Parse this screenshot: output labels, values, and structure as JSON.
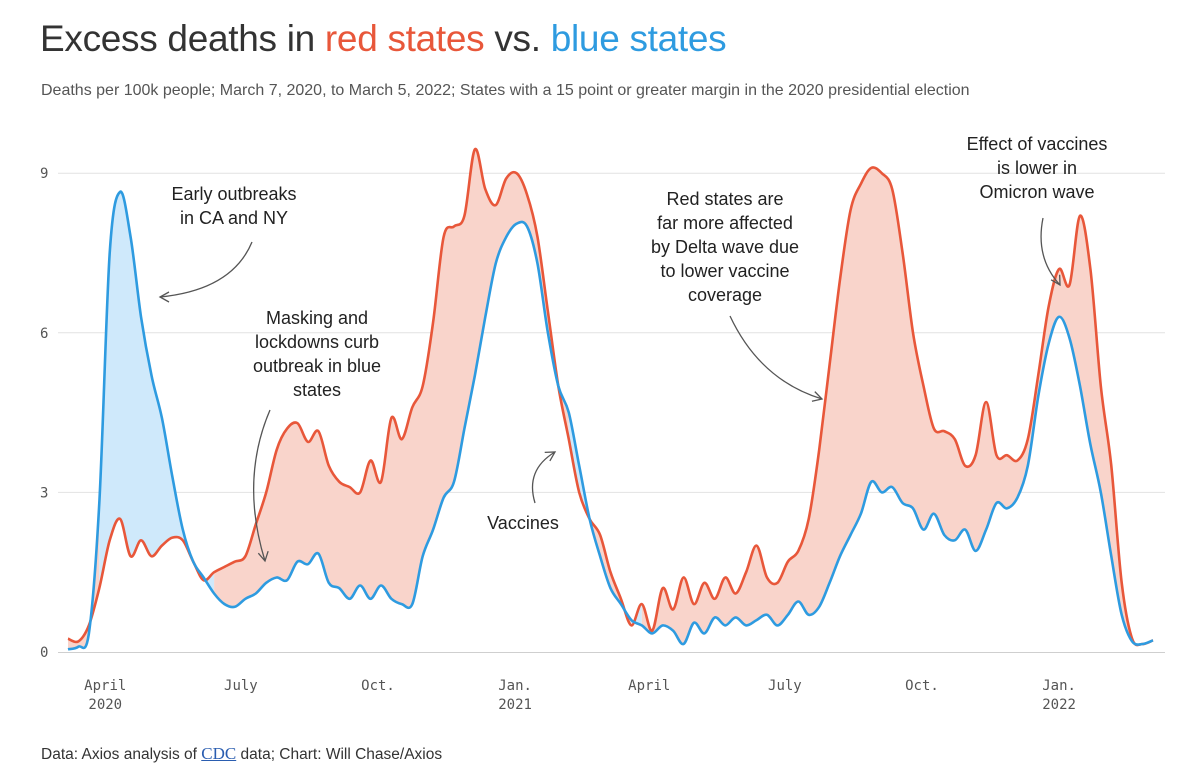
{
  "title": {
    "prefix": "Excess deaths in ",
    "red": "red states",
    "middle": " vs. ",
    "blue": "blue states"
  },
  "subtitle": "Deaths per 100k people; March 7, 2020, to March 5, 2022; States with a 15 point or greater margin in the 2020 presidential election",
  "footer": {
    "prefix": "Data: Axios analysis of ",
    "link": "CDC",
    "suffix": " data; Chart: Will Chase/Axios"
  },
  "colors": {
    "red": "#e8573a",
    "blue": "#2e9be0",
    "red_fill": "#f9d4cb",
    "blue_fill": "#cfe9fb",
    "grid": "#e2e2e2",
    "text": "#333333"
  },
  "chart_data": {
    "type": "area",
    "title": "Excess deaths in red states vs. blue states",
    "ylabel": "",
    "ylim": [
      0,
      9.8
    ],
    "yticks": [
      0,
      3,
      6,
      9
    ],
    "xlim": [
      "2020-03-07",
      "2022-03-05"
    ],
    "xticks": [
      {
        "date": "2020-04-01",
        "label": "April",
        "year": "2020"
      },
      {
        "date": "2020-07-01",
        "label": "July",
        "year": ""
      },
      {
        "date": "2020-10-01",
        "label": "Oct.",
        "year": ""
      },
      {
        "date": "2021-01-01",
        "label": "Jan.",
        "year": "2021"
      },
      {
        "date": "2021-04-01",
        "label": "April",
        "year": ""
      },
      {
        "date": "2021-07-01",
        "label": "July",
        "year": ""
      },
      {
        "date": "2021-10-01",
        "label": "Oct.",
        "year": ""
      },
      {
        "date": "2022-01-01",
        "label": "Jan.",
        "year": "2022"
      }
    ],
    "series": [
      {
        "name": "Red states",
        "points": [
          [
            "2020-03-07",
            0.25
          ],
          [
            "2020-03-14",
            0.2
          ],
          [
            "2020-03-21",
            0.5
          ],
          [
            "2020-03-28",
            1.2
          ],
          [
            "2020-04-04",
            2.1
          ],
          [
            "2020-04-11",
            2.5
          ],
          [
            "2020-04-18",
            1.8
          ],
          [
            "2020-04-25",
            2.1
          ],
          [
            "2020-05-02",
            1.8
          ],
          [
            "2020-05-09",
            2.0
          ],
          [
            "2020-05-16",
            2.15
          ],
          [
            "2020-05-23",
            2.1
          ],
          [
            "2020-05-30",
            1.7
          ],
          [
            "2020-06-06",
            1.35
          ],
          [
            "2020-06-13",
            1.5
          ],
          [
            "2020-06-20",
            1.6
          ],
          [
            "2020-06-27",
            1.7
          ],
          [
            "2020-07-04",
            1.8
          ],
          [
            "2020-07-11",
            2.4
          ],
          [
            "2020-07-18",
            3.0
          ],
          [
            "2020-07-25",
            3.8
          ],
          [
            "2020-08-01",
            4.2
          ],
          [
            "2020-08-08",
            4.3
          ],
          [
            "2020-08-15",
            3.95
          ],
          [
            "2020-08-22",
            4.15
          ],
          [
            "2020-08-29",
            3.5
          ],
          [
            "2020-09-05",
            3.2
          ],
          [
            "2020-09-12",
            3.1
          ],
          [
            "2020-09-19",
            3.0
          ],
          [
            "2020-09-26",
            3.6
          ],
          [
            "2020-10-03",
            3.2
          ],
          [
            "2020-10-10",
            4.4
          ],
          [
            "2020-10-17",
            4.0
          ],
          [
            "2020-10-24",
            4.6
          ],
          [
            "2020-10-31",
            5.0
          ],
          [
            "2020-11-07",
            6.2
          ],
          [
            "2020-11-14",
            7.8
          ],
          [
            "2020-11-21",
            8.0
          ],
          [
            "2020-11-28",
            8.2
          ],
          [
            "2020-12-05",
            9.45
          ],
          [
            "2020-12-12",
            8.7
          ],
          [
            "2020-12-19",
            8.4
          ],
          [
            "2020-12-26",
            8.9
          ],
          [
            "2021-01-02",
            9.0
          ],
          [
            "2021-01-09",
            8.6
          ],
          [
            "2021-01-16",
            7.8
          ],
          [
            "2021-01-23",
            6.4
          ],
          [
            "2021-01-30",
            5.0
          ],
          [
            "2021-02-06",
            4.0
          ],
          [
            "2021-02-13",
            3.0
          ],
          [
            "2021-02-20",
            2.5
          ],
          [
            "2021-02-27",
            2.2
          ],
          [
            "2021-03-06",
            1.5
          ],
          [
            "2021-03-13",
            1.0
          ],
          [
            "2021-03-20",
            0.5
          ],
          [
            "2021-03-27",
            0.9
          ],
          [
            "2021-04-03",
            0.4
          ],
          [
            "2021-04-10",
            1.2
          ],
          [
            "2021-04-17",
            0.8
          ],
          [
            "2021-04-24",
            1.4
          ],
          [
            "2021-05-01",
            0.9
          ],
          [
            "2021-05-08",
            1.3
          ],
          [
            "2021-05-15",
            1.0
          ],
          [
            "2021-05-22",
            1.4
          ],
          [
            "2021-05-29",
            1.1
          ],
          [
            "2021-06-05",
            1.5
          ],
          [
            "2021-06-12",
            2.0
          ],
          [
            "2021-06-19",
            1.4
          ],
          [
            "2021-06-26",
            1.3
          ],
          [
            "2021-07-03",
            1.7
          ],
          [
            "2021-07-10",
            1.9
          ],
          [
            "2021-07-17",
            2.5
          ],
          [
            "2021-07-24",
            3.8
          ],
          [
            "2021-07-31",
            5.4
          ],
          [
            "2021-08-07",
            7.0
          ],
          [
            "2021-08-14",
            8.3
          ],
          [
            "2021-08-21",
            8.8
          ],
          [
            "2021-08-28",
            9.1
          ],
          [
            "2021-09-04",
            9.0
          ],
          [
            "2021-09-11",
            8.7
          ],
          [
            "2021-09-18",
            7.5
          ],
          [
            "2021-09-25",
            6.0
          ],
          [
            "2021-10-02",
            5.0
          ],
          [
            "2021-10-09",
            4.2
          ],
          [
            "2021-10-16",
            4.15
          ],
          [
            "2021-10-23",
            4.0
          ],
          [
            "2021-10-30",
            3.5
          ],
          [
            "2021-11-06",
            3.7
          ],
          [
            "2021-11-13",
            4.7
          ],
          [
            "2021-11-20",
            3.7
          ],
          [
            "2021-11-27",
            3.7
          ],
          [
            "2021-12-04",
            3.6
          ],
          [
            "2021-12-11",
            4.0
          ],
          [
            "2021-12-18",
            5.2
          ],
          [
            "2021-12-25",
            6.5
          ],
          [
            "2022-01-01",
            7.2
          ],
          [
            "2022-01-08",
            6.9
          ],
          [
            "2022-01-15",
            8.2
          ],
          [
            "2022-01-22",
            7.2
          ],
          [
            "2022-01-29",
            5.0
          ],
          [
            "2022-02-05",
            3.5
          ],
          [
            "2022-02-12",
            1.3
          ],
          [
            "2022-02-19",
            0.25
          ],
          [
            "2022-02-26",
            0.15
          ],
          [
            "2022-03-05",
            0.22
          ]
        ]
      },
      {
        "name": "Blue states",
        "points": [
          [
            "2020-03-07",
            0.05
          ],
          [
            "2020-03-14",
            0.1
          ],
          [
            "2020-03-21",
            0.35
          ],
          [
            "2020-03-28",
            2.8
          ],
          [
            "2020-04-04",
            7.5
          ],
          [
            "2020-04-11",
            8.65
          ],
          [
            "2020-04-18",
            7.8
          ],
          [
            "2020-04-25",
            6.3
          ],
          [
            "2020-05-02",
            5.2
          ],
          [
            "2020-05-09",
            4.4
          ],
          [
            "2020-05-16",
            3.3
          ],
          [
            "2020-05-23",
            2.3
          ],
          [
            "2020-05-30",
            1.7
          ],
          [
            "2020-06-06",
            1.4
          ],
          [
            "2020-06-13",
            1.1
          ],
          [
            "2020-06-20",
            0.9
          ],
          [
            "2020-06-27",
            0.85
          ],
          [
            "2020-07-04",
            1.0
          ],
          [
            "2020-07-11",
            1.1
          ],
          [
            "2020-07-18",
            1.3
          ],
          [
            "2020-07-25",
            1.4
          ],
          [
            "2020-08-01",
            1.35
          ],
          [
            "2020-08-08",
            1.7
          ],
          [
            "2020-08-15",
            1.65
          ],
          [
            "2020-08-22",
            1.85
          ],
          [
            "2020-08-29",
            1.3
          ],
          [
            "2020-09-05",
            1.2
          ],
          [
            "2020-09-12",
            1.0
          ],
          [
            "2020-09-19",
            1.25
          ],
          [
            "2020-09-26",
            1.0
          ],
          [
            "2020-10-03",
            1.25
          ],
          [
            "2020-10-10",
            1.0
          ],
          [
            "2020-10-17",
            0.9
          ],
          [
            "2020-10-24",
            0.9
          ],
          [
            "2020-10-31",
            1.8
          ],
          [
            "2020-11-07",
            2.3
          ],
          [
            "2020-11-14",
            2.9
          ],
          [
            "2020-11-21",
            3.2
          ],
          [
            "2020-11-28",
            4.2
          ],
          [
            "2020-12-05",
            5.2
          ],
          [
            "2020-12-12",
            6.3
          ],
          [
            "2020-12-19",
            7.3
          ],
          [
            "2020-12-26",
            7.8
          ],
          [
            "2021-01-02",
            8.05
          ],
          [
            "2021-01-09",
            8.0
          ],
          [
            "2021-01-16",
            7.3
          ],
          [
            "2021-01-23",
            6.0
          ],
          [
            "2021-01-30",
            5.0
          ],
          [
            "2021-02-06",
            4.5
          ],
          [
            "2021-02-13",
            3.5
          ],
          [
            "2021-02-20",
            2.5
          ],
          [
            "2021-02-27",
            1.8
          ],
          [
            "2021-03-06",
            1.2
          ],
          [
            "2021-03-13",
            0.9
          ],
          [
            "2021-03-20",
            0.6
          ],
          [
            "2021-03-27",
            0.5
          ],
          [
            "2021-04-03",
            0.35
          ],
          [
            "2021-04-10",
            0.5
          ],
          [
            "2021-04-17",
            0.4
          ],
          [
            "2021-04-24",
            0.15
          ],
          [
            "2021-05-01",
            0.55
          ],
          [
            "2021-05-08",
            0.35
          ],
          [
            "2021-05-15",
            0.65
          ],
          [
            "2021-05-22",
            0.5
          ],
          [
            "2021-05-29",
            0.65
          ],
          [
            "2021-06-05",
            0.5
          ],
          [
            "2021-06-12",
            0.6
          ],
          [
            "2021-06-19",
            0.7
          ],
          [
            "2021-06-26",
            0.5
          ],
          [
            "2021-07-03",
            0.7
          ],
          [
            "2021-07-10",
            0.95
          ],
          [
            "2021-07-17",
            0.7
          ],
          [
            "2021-07-24",
            0.85
          ],
          [
            "2021-07-31",
            1.3
          ],
          [
            "2021-08-07",
            1.8
          ],
          [
            "2021-08-14",
            2.2
          ],
          [
            "2021-08-21",
            2.6
          ],
          [
            "2021-08-28",
            3.2
          ],
          [
            "2021-09-04",
            3.0
          ],
          [
            "2021-09-11",
            3.1
          ],
          [
            "2021-09-18",
            2.8
          ],
          [
            "2021-09-25",
            2.7
          ],
          [
            "2021-10-02",
            2.3
          ],
          [
            "2021-10-09",
            2.6
          ],
          [
            "2021-10-16",
            2.2
          ],
          [
            "2021-10-23",
            2.1
          ],
          [
            "2021-10-30",
            2.3
          ],
          [
            "2021-11-06",
            1.9
          ],
          [
            "2021-11-13",
            2.3
          ],
          [
            "2021-11-20",
            2.8
          ],
          [
            "2021-11-27",
            2.7
          ],
          [
            "2021-12-04",
            2.9
          ],
          [
            "2021-12-11",
            3.5
          ],
          [
            "2021-12-18",
            4.8
          ],
          [
            "2021-12-25",
            5.8
          ],
          [
            "2022-01-01",
            6.3
          ],
          [
            "2022-01-08",
            5.9
          ],
          [
            "2022-01-15",
            5.0
          ],
          [
            "2022-01-22",
            3.9
          ],
          [
            "2022-01-29",
            3.0
          ],
          [
            "2022-02-05",
            1.8
          ],
          [
            "2022-02-12",
            0.7
          ],
          [
            "2022-02-19",
            0.2
          ],
          [
            "2022-02-26",
            0.15
          ],
          [
            "2022-03-05",
            0.22
          ]
        ]
      }
    ],
    "annotations": [
      {
        "id": "early",
        "lines": [
          "Early outbreaks",
          "in CA and NY"
        ]
      },
      {
        "id": "masking",
        "lines": [
          "Masking and",
          "lockdowns curb",
          "outbreak in blue",
          "states"
        ]
      },
      {
        "id": "vaccines",
        "lines": [
          "Vaccines"
        ]
      },
      {
        "id": "delta",
        "lines": [
          "Red states are",
          "far more affected",
          "by Delta wave due",
          "to lower vaccine",
          "coverage"
        ]
      },
      {
        "id": "omicron",
        "lines": [
          "Effect of vaccines",
          "is lower in",
          "Omicron wave"
        ]
      }
    ]
  }
}
